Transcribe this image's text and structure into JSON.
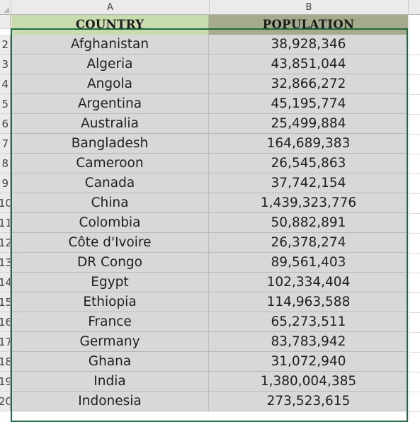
{
  "columns": {
    "a": "A",
    "b": "B"
  },
  "header": {
    "country": "COUNTRY",
    "population": "POPULATION"
  },
  "row_numbers": [
    "2",
    "3",
    "4",
    "5",
    "6",
    "7",
    "8",
    "9",
    "10",
    "11",
    "12",
    "13",
    "14",
    "15",
    "16",
    "17",
    "18",
    "19",
    "20"
  ],
  "rows": [
    {
      "country": "Afghanistan",
      "population": "38,928,346"
    },
    {
      "country": "Algeria",
      "population": "43,851,044"
    },
    {
      "country": "Angola",
      "population": "32,866,272"
    },
    {
      "country": "Argentina",
      "population": "45,195,774"
    },
    {
      "country": "Australia",
      "population": "25,499,884"
    },
    {
      "country": "Bangladesh",
      "population": "164,689,383"
    },
    {
      "country": "Cameroon",
      "population": "26,545,863"
    },
    {
      "country": "Canada",
      "population": "37,742,154"
    },
    {
      "country": "China",
      "population": "1,439,323,776"
    },
    {
      "country": "Colombia",
      "population": "50,882,891"
    },
    {
      "country": "Côte d'Ivoire",
      "population": "26,378,274"
    },
    {
      "country": "DR Congo",
      "population": "89,561,403"
    },
    {
      "country": "Egypt",
      "population": "102,334,404"
    },
    {
      "country": "Ethiopia",
      "population": "114,963,588"
    },
    {
      "country": "France",
      "population": "65,273,511"
    },
    {
      "country": "Germany",
      "population": "83,783,942"
    },
    {
      "country": "Ghana",
      "population": "31,072,940"
    },
    {
      "country": "India",
      "population": "1,380,004,385"
    },
    {
      "country": "Indonesia",
      "population": "273,523,615"
    }
  ],
  "colors": {
    "header_a": "#c9dcae",
    "header_b": "#a6ab8c",
    "selection": "#1f6b43",
    "cell_fill": "#d8d8d8"
  }
}
